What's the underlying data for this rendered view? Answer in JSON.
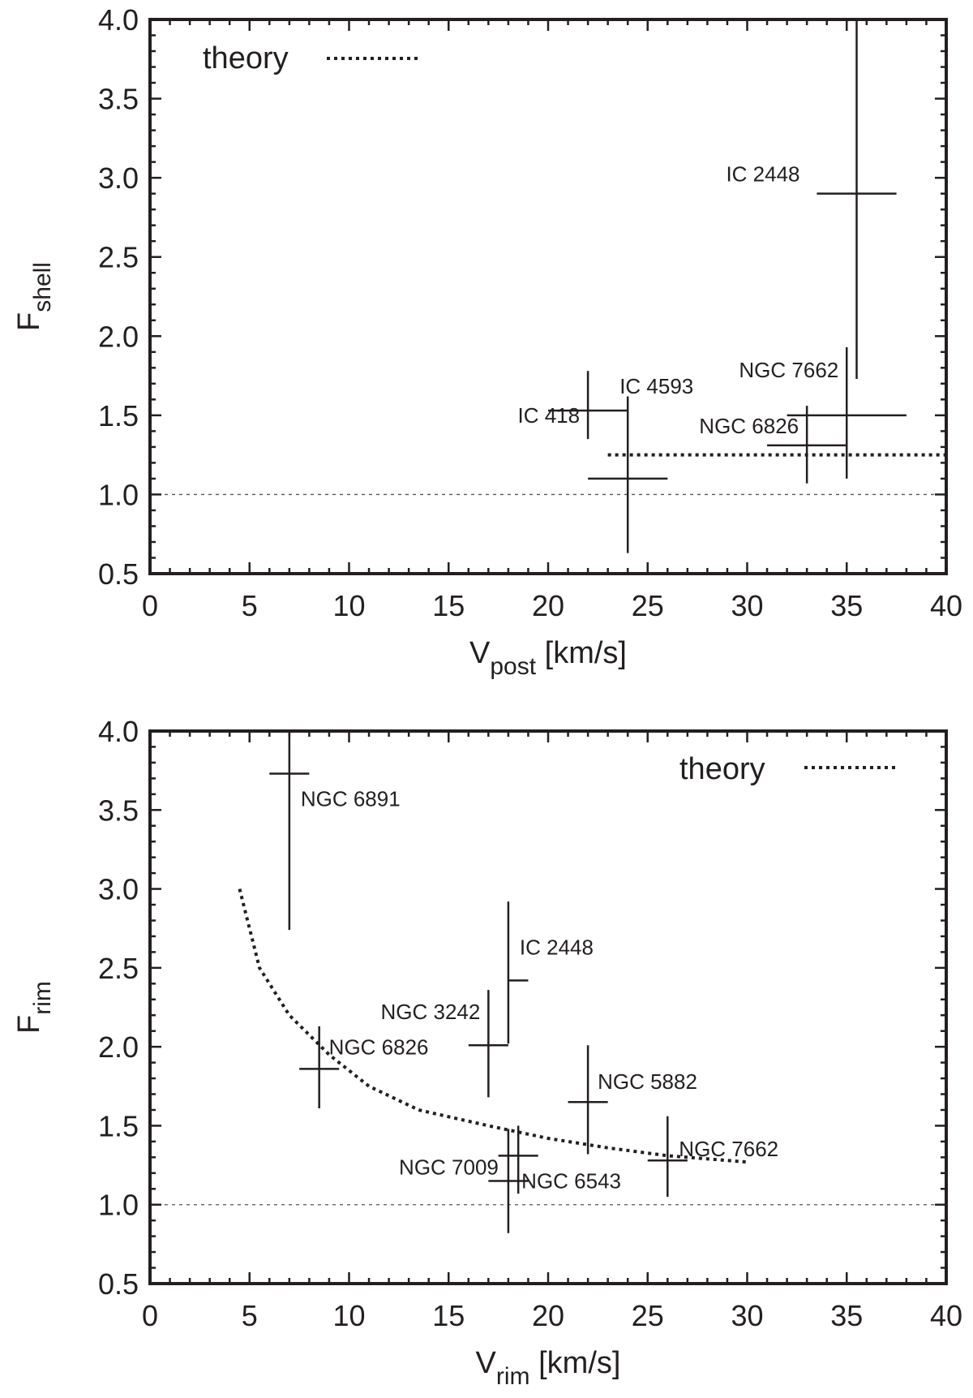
{
  "chart_data": [
    {
      "type": "scatter",
      "title": "",
      "xlabel": {
        "main": "V",
        "sub": "post",
        "unit": " [km/s]"
      },
      "ylabel": {
        "main": "F",
        "sub": "shell"
      },
      "xlim": [
        0,
        40
      ],
      "ylim": [
        0.5,
        4.0
      ],
      "xticks": [
        "0",
        "5",
        "10",
        "15",
        "20",
        "25",
        "30",
        "35",
        "40"
      ],
      "yticks": [
        "0.5",
        "1.0",
        "1.5",
        "2.0",
        "2.5",
        "3.0",
        "3.5",
        "4.0"
      ],
      "legend": {
        "label": "theory",
        "placement": "top-left"
      },
      "reference_line_y": 1.0,
      "theory": {
        "x": [
          23,
          40
        ],
        "y": [
          1.25,
          1.25
        ]
      },
      "points": [
        {
          "name": "IC 418",
          "x": 22,
          "xerr": [
            20,
            24
          ],
          "y": 1.53,
          "yerr": [
            1.35,
            1.78
          ]
        },
        {
          "name": "IC 4593",
          "x": 24,
          "xerr": [
            22,
            26
          ],
          "y": 1.1,
          "yerr": [
            0.63,
            1.62
          ]
        },
        {
          "name": "IC 2448",
          "x": 35.5,
          "xerr": [
            33.5,
            37.5
          ],
          "y": 2.9,
          "yerr": [
            1.73,
            4.0
          ]
        },
        {
          "name": "NGC 7662",
          "x": 35,
          "xerr": [
            32,
            38
          ],
          "y": 1.5,
          "yerr": [
            1.1,
            1.93
          ]
        },
        {
          "name": "NGC 6826",
          "x": 33,
          "xerr": [
            31,
            35
          ],
          "y": 1.31,
          "yerr": [
            1.07,
            1.56
          ]
        }
      ]
    },
    {
      "type": "scatter",
      "title": "",
      "xlabel": {
        "main": "V",
        "sub": "rim",
        "unit": " [km/s]"
      },
      "ylabel": {
        "main": "F",
        "sub": "rim"
      },
      "xlim": [
        0,
        40
      ],
      "ylim": [
        0.5,
        4.0
      ],
      "xticks": [
        "0",
        "5",
        "10",
        "15",
        "20",
        "25",
        "30",
        "35",
        "40"
      ],
      "yticks": [
        "0.5",
        "1.0",
        "1.5",
        "2.0",
        "2.5",
        "3.0",
        "3.5",
        "4.0"
      ],
      "legend": {
        "label": "theory",
        "placement": "top-right"
      },
      "reference_line_y": 1.0,
      "theory": {
        "x": [
          4.5,
          5.5,
          7,
          9,
          11,
          13.5,
          17,
          20,
          23,
          26,
          30
        ],
        "y": [
          3.0,
          2.5,
          2.2,
          1.95,
          1.75,
          1.6,
          1.5,
          1.42,
          1.36,
          1.31,
          1.27
        ]
      },
      "points": [
        {
          "name": "NGC 6891",
          "x": 7,
          "xerr": [
            6,
            8
          ],
          "y": 3.73,
          "yerr": [
            2.74,
            4.0
          ]
        },
        {
          "name": "NGC 6826",
          "x": 8.5,
          "xerr": [
            7.5,
            9.5
          ],
          "y": 1.86,
          "yerr": [
            1.61,
            2.13
          ]
        },
        {
          "name": "NGC 3242",
          "x": 17,
          "xerr": [
            16,
            18
          ],
          "y": 2.01,
          "yerr": [
            1.68,
            2.36
          ]
        },
        {
          "name": "IC 2448",
          "x": 18,
          "xerr": [
            18,
            19
          ],
          "y": 2.42,
          "yerr": [
            2.02,
            2.92
          ]
        },
        {
          "name": "NGC 5882",
          "x": 22,
          "xerr": [
            21,
            23
          ],
          "y": 1.65,
          "yerr": [
            1.32,
            2.01
          ]
        },
        {
          "name": "NGC 7009",
          "x": 18,
          "xerr": [
            17,
            19
          ],
          "y": 1.15,
          "yerr": [
            0.82,
            1.48
          ]
        },
        {
          "name": "NGC 6543",
          "x": 18.5,
          "xerr": [
            17.5,
            19.5
          ],
          "y": 1.31,
          "yerr": [
            1.07,
            1.5
          ]
        },
        {
          "name": "NGC 7662",
          "x": 26,
          "xerr": [
            25,
            27
          ],
          "y": 1.28,
          "yerr": [
            1.05,
            1.56
          ]
        }
      ]
    }
  ]
}
